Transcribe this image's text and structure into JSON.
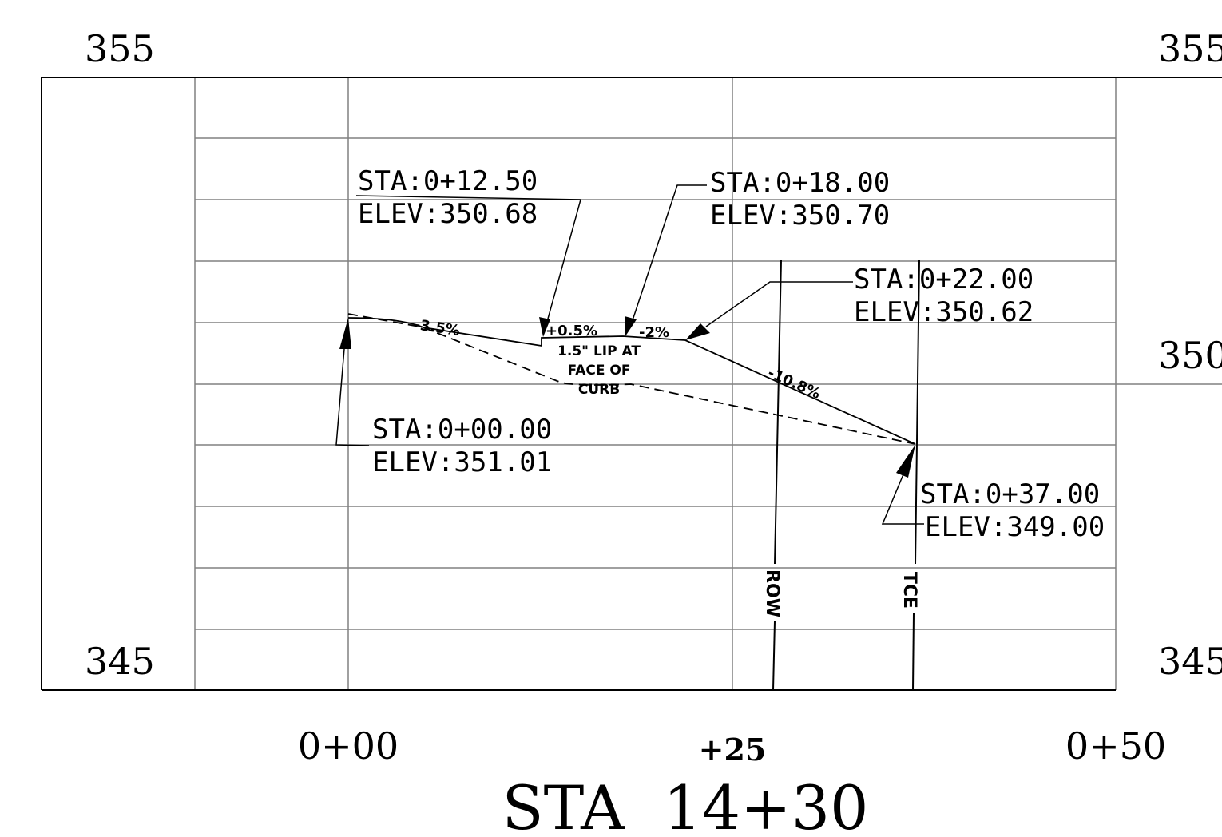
{
  "elevation_labels": {
    "left_top": "355",
    "left_bottom": "345",
    "right_top": "355",
    "right_mid": "350",
    "right_bottom": "345"
  },
  "station_labels": {
    "start": "0+00",
    "mid": "+25",
    "end": "0+50"
  },
  "title": "STA  14+30",
  "callouts": {
    "p1": {
      "sta": "STA:0+12.50",
      "elev": "ELEV:350.68"
    },
    "p2": {
      "sta": "STA:0+18.00",
      "elev": "ELEV:350.70"
    },
    "p3": {
      "sta": "STA:0+22.00",
      "elev": "ELEV:350.62"
    },
    "p0": {
      "sta": "STA:0+00.00",
      "elev": "ELEV:351.01"
    },
    "p4": {
      "sta": "STA:0+37.00",
      "elev": "ELEV:349.00"
    }
  },
  "slopes": {
    "s1": "-3.5%",
    "s2": "+0.5%",
    "s3": "-2%",
    "s4": "-10.8%"
  },
  "lip_note": [
    "1.5\" LIP AT",
    "FACE OF",
    "CURB"
  ],
  "boundary_lines": {
    "row": "ROW",
    "tce": "TCE"
  },
  "colors": {
    "ink": "#000000",
    "grid": "#808080",
    "background": "#ffffff"
  }
}
